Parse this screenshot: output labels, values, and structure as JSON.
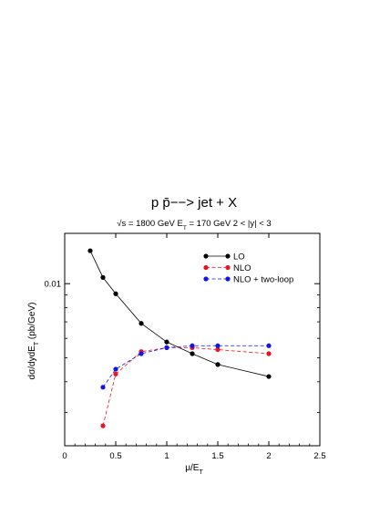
{
  "chart_data": {
    "type": "line",
    "title": "p p̄−−> jet + X",
    "subtitle": "√s = 1800 GeV   E",
    "subtitle_sub": "T",
    "subtitle_rest": " = 170 GeV   2 < |y| < 3",
    "xlabel": "μ/E",
    "xlabel_sub": "T",
    "ylabel": "dσ/dydE",
    "ylabel_sub": "T",
    "ylabel_rest": " (pb/GeV)",
    "xlim": [
      0,
      2.5
    ],
    "ylim_log": [
      0.0022,
      0.016
    ],
    "y_scale": "log",
    "x_ticks": [
      "0",
      "0.5",
      "1",
      "1.5",
      "2",
      "2.5"
    ],
    "x_tick_values": [
      0,
      0.5,
      1,
      1.5,
      2,
      2.5
    ],
    "y_ticks": [
      "0.01"
    ],
    "y_tick_values": [
      0.01
    ],
    "grid": false,
    "legend_position": "top-right",
    "series": [
      {
        "name": "LO",
        "color": "#000000",
        "dash": "solid",
        "x": [
          0.25,
          0.375,
          0.5,
          0.75,
          1.0,
          1.25,
          1.5,
          2.0
        ],
        "y": [
          0.0136,
          0.0106,
          0.0091,
          0.0069,
          0.0058,
          0.0052,
          0.0047,
          0.0042
        ]
      },
      {
        "name": "NLO",
        "color": "#e8141e",
        "dash": "dashed",
        "x": [
          0.375,
          0.5,
          0.75,
          1.0,
          1.25,
          1.5,
          2.0
        ],
        "y": [
          0.00265,
          0.0043,
          0.0053,
          0.0055,
          0.0055,
          0.0054,
          0.0052
        ]
      },
      {
        "name": "NLO + two-loop",
        "color": "#1414e8",
        "dash": "dashed",
        "x": [
          0.375,
          0.5,
          0.75,
          1.0,
          1.25,
          1.5,
          2.0
        ],
        "y": [
          0.0038,
          0.0045,
          0.0052,
          0.0055,
          0.0056,
          0.0056,
          0.0056
        ]
      }
    ]
  }
}
